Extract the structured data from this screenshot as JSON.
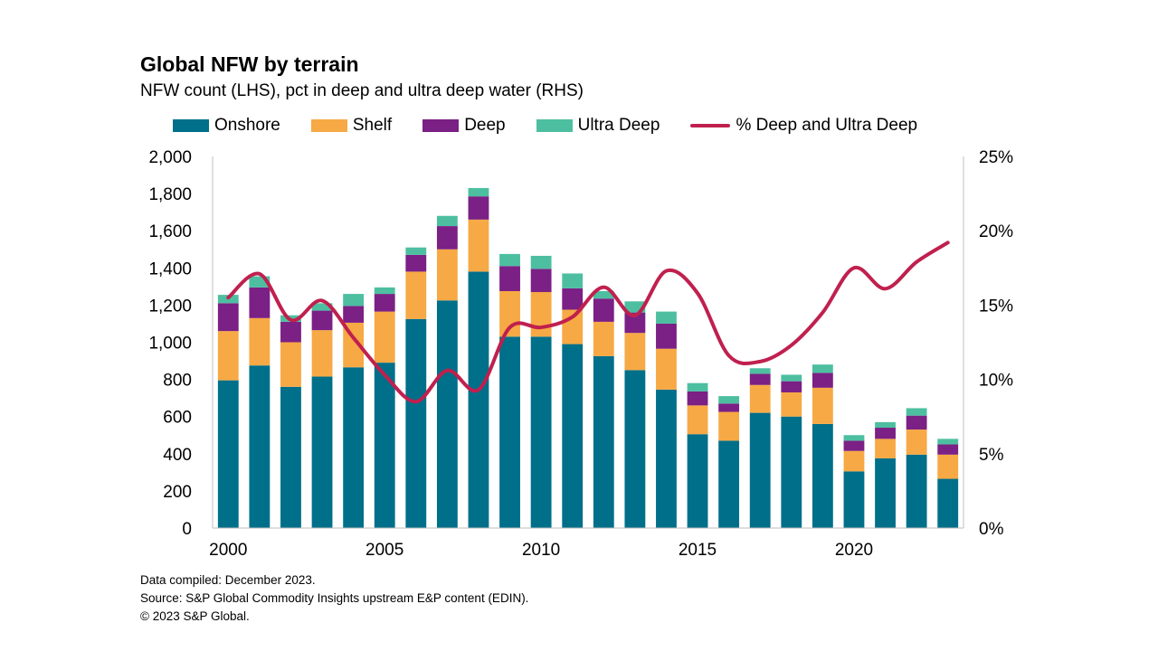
{
  "chart_data": {
    "type": "bar",
    "stacked": true,
    "title": "Global NFW by terrain",
    "subtitle": "NFW count (LHS), pct in deep and ultra deep water (RHS)",
    "x": [
      2000,
      2001,
      2002,
      2003,
      2004,
      2005,
      2006,
      2007,
      2008,
      2009,
      2010,
      2011,
      2012,
      2013,
      2014,
      2015,
      2016,
      2017,
      2018,
      2019,
      2020,
      2021,
      2022,
      2023
    ],
    "x_ticks": [
      "2000",
      "2005",
      "2010",
      "2015",
      "2020"
    ],
    "y_left": {
      "range": [
        0,
        2000
      ],
      "ticks": [
        "0",
        "200",
        "400",
        "600",
        "800",
        "1,000",
        "1,200",
        "1,400",
        "1,600",
        "1,800",
        "2,000"
      ]
    },
    "y_right": {
      "range": [
        0,
        25
      ],
      "ticks": [
        "0%",
        "5%",
        "10%",
        "15%",
        "20%",
        "25%"
      ]
    },
    "legend_placement": "top",
    "series": [
      {
        "name": "Onshore",
        "type": "bar",
        "axis": "left",
        "color": "#006F8A",
        "values": [
          795,
          875,
          760,
          815,
          865,
          890,
          1125,
          1225,
          1380,
          1030,
          1030,
          990,
          925,
          850,
          745,
          505,
          470,
          620,
          600,
          560,
          305,
          375,
          395,
          265
        ]
      },
      {
        "name": "Shelf",
        "type": "bar",
        "axis": "left",
        "color": "#F7A945",
        "values": [
          265,
          255,
          240,
          250,
          240,
          275,
          255,
          275,
          280,
          245,
          240,
          185,
          185,
          200,
          220,
          155,
          155,
          150,
          130,
          195,
          110,
          105,
          135,
          130
        ]
      },
      {
        "name": "Deep",
        "type": "bar",
        "axis": "left",
        "color": "#7B2085",
        "values": [
          150,
          165,
          110,
          105,
          90,
          95,
          90,
          125,
          125,
          135,
          125,
          115,
          125,
          110,
          135,
          75,
          45,
          60,
          60,
          80,
          55,
          60,
          75,
          55
        ]
      },
      {
        "name": "Ultra Deep",
        "type": "bar",
        "axis": "left",
        "color": "#4DBFA0",
        "values": [
          45,
          60,
          35,
          40,
          65,
          35,
          40,
          55,
          45,
          65,
          70,
          80,
          40,
          60,
          65,
          45,
          40,
          30,
          35,
          45,
          30,
          30,
          40,
          30
        ]
      },
      {
        "name": "% Deep and Ultra Deep",
        "type": "line",
        "axis": "right",
        "color": "#C0204E",
        "values": [
          15.5,
          17.1,
          14.0,
          15.3,
          12.8,
          10.3,
          8.5,
          10.6,
          9.3,
          13.5,
          13.5,
          14.2,
          16.2,
          14.3,
          17.3,
          15.8,
          11.6,
          11.2,
          12.3,
          14.5,
          17.5,
          16.1,
          17.9,
          19.2
        ]
      }
    ]
  },
  "footnotes": {
    "compiled": "Data compiled: December 2023.",
    "source": "Source: S&P Global Commodity Insights upstream E&P content (EDIN).",
    "copyright": "© 2023 S&P Global."
  }
}
